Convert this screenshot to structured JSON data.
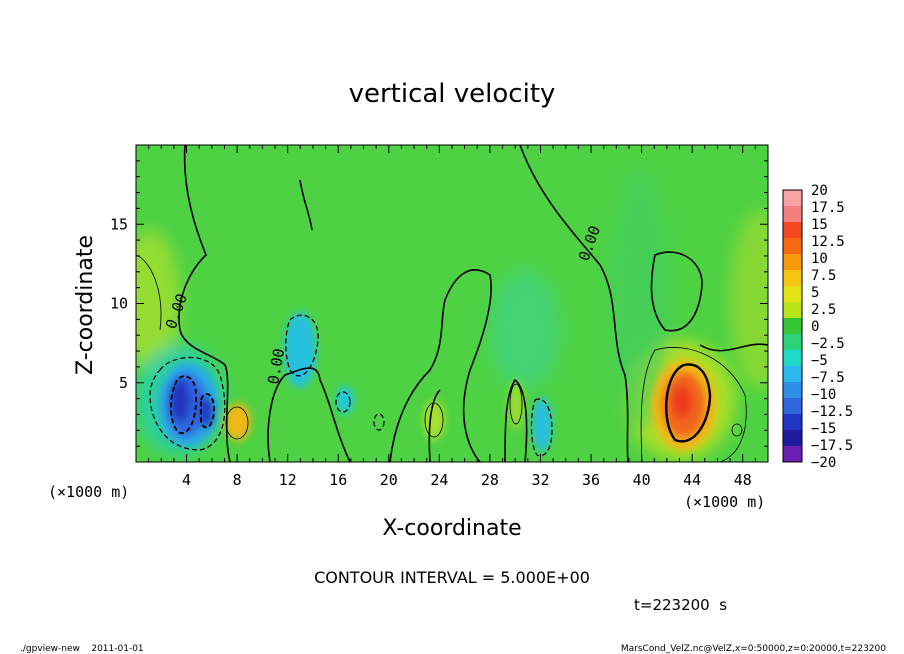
{
  "chart_data": {
    "type": "heatmap",
    "title": "vertical velocity",
    "xlabel": "X-coordinate",
    "ylabel": "Z-coordinate",
    "x_unit_label": "(×1000 m)",
    "y_unit_label": "(×1000 m)",
    "xlim": [
      0,
      50
    ],
    "ylim": [
      0,
      20
    ],
    "x_ticks": [
      "4",
      "8",
      "12",
      "16",
      "20",
      "24",
      "28",
      "32",
      "36",
      "40",
      "44",
      "48"
    ],
    "y_ticks": [
      "5",
      "10",
      "15"
    ],
    "colorbar_labels": [
      "20",
      "17.5",
      "15",
      "12.5",
      "10",
      "7.5",
      "5",
      "2.5",
      "0",
      "−2.5",
      "−5",
      "−7.5",
      "−10",
      "−12.5",
      "−15",
      "−17.5",
      "−20"
    ],
    "colorbar_colors": [
      "#f7a3a3",
      "#f47f7f",
      "#f24a1e",
      "#f56a10",
      "#f79a0c",
      "#f5c612",
      "#e3e614",
      "#b8e61a",
      "#33c833",
      "#2bd47a",
      "#1ed8c8",
      "#2ab8ee",
      "#2f8fe8",
      "#2f66dd",
      "#2035c2",
      "#201a9e",
      "#6a1eb4"
    ],
    "contour_labels": [
      "0.00",
      "0.00",
      "0.00"
    ],
    "contour_interval_text": "CONTOUR INTERVAL = 5.000E+00",
    "time_text": "t=223200  s",
    "features": [
      {
        "x": 4.5,
        "z": 3.2,
        "value": -15
      },
      {
        "x": 5.5,
        "z": 2.8,
        "value": -12.5
      },
      {
        "x": 8.0,
        "z": 2.5,
        "value": 7.5
      },
      {
        "x": 13.5,
        "z": 6.5,
        "value": -7.5
      },
      {
        "x": 16.5,
        "z": 3.5,
        "value": -5
      },
      {
        "x": 31.5,
        "z": 2.5,
        "value": -7.5
      },
      {
        "x": 43.5,
        "z": 4.0,
        "value": 15
      }
    ]
  },
  "footer": {
    "left": "./gpview-new    2011-01-01",
    "right": "MarsCond_VelZ.nc@VelZ,x=0:50000,z=0:20000,t=223200"
  }
}
